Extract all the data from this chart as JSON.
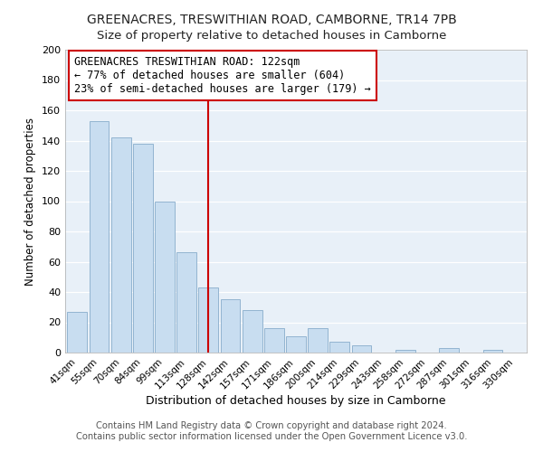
{
  "title": "GREENACRES, TRESWITHIAN ROAD, CAMBORNE, TR14 7PB",
  "subtitle": "Size of property relative to detached houses in Camborne",
  "xlabel": "Distribution of detached houses by size in Camborne",
  "ylabel": "Number of detached properties",
  "bar_labels": [
    "41sqm",
    "55sqm",
    "70sqm",
    "84sqm",
    "99sqm",
    "113sqm",
    "128sqm",
    "142sqm",
    "157sqm",
    "171sqm",
    "186sqm",
    "200sqm",
    "214sqm",
    "229sqm",
    "243sqm",
    "258sqm",
    "272sqm",
    "287sqm",
    "301sqm",
    "316sqm",
    "330sqm"
  ],
  "bar_values": [
    27,
    153,
    142,
    138,
    100,
    66,
    43,
    35,
    28,
    16,
    11,
    16,
    7,
    5,
    0,
    2,
    0,
    3,
    0,
    2,
    0
  ],
  "bar_color": "#c8ddf0",
  "bar_edge_color": "#92b4d0",
  "vline_color": "#cc0000",
  "annotation_text": "GREENACRES TRESWITHIAN ROAD: 122sqm\n← 77% of detached houses are smaller (604)\n23% of semi-detached houses are larger (179) →",
  "annotation_box_color": "#ffffff",
  "annotation_box_edge": "#cc0000",
  "bg_color": "#e8f0f8",
  "ylim": [
    0,
    200
  ],
  "yticks": [
    0,
    20,
    40,
    60,
    80,
    100,
    120,
    140,
    160,
    180,
    200
  ],
  "footer1": "Contains HM Land Registry data © Crown copyright and database right 2024.",
  "footer2": "Contains public sector information licensed under the Open Government Licence v3.0.",
  "title_fontsize": 10,
  "subtitle_fontsize": 9.5,
  "annotation_fontsize": 8.5,
  "footer_fontsize": 7.2,
  "xlabel_fontsize": 9,
  "ylabel_fontsize": 8.5
}
